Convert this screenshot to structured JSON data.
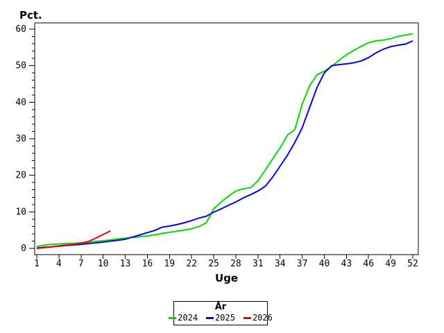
{
  "window": {
    "background": "#ffffff"
  },
  "chart_data": {
    "type": "line",
    "title": "",
    "ylabel": "Pct.",
    "xlabel": "Uge",
    "legend_title": "År",
    "legend_position": "bottom-center",
    "grid": false,
    "xlim": [
      1,
      52
    ],
    "ylim": [
      0,
      60
    ],
    "x_ticks": [
      1,
      4,
      7,
      10,
      13,
      16,
      19,
      22,
      25,
      28,
      31,
      34,
      37,
      40,
      43,
      46,
      49,
      52
    ],
    "y_ticks": [
      0,
      10,
      20,
      30,
      40,
      50,
      60
    ],
    "y_minor_tick_step": 2,
    "axis_color": "#000000",
    "series": [
      {
        "name": "2024",
        "color": "#00dd00",
        "x": [
          1,
          2,
          3,
          4,
          5,
          6,
          7,
          8,
          9,
          10,
          11,
          12,
          13,
          14,
          15,
          16,
          17,
          18,
          19,
          20,
          21,
          22,
          23,
          24,
          25,
          26,
          27,
          28,
          29,
          30,
          31,
          32,
          33,
          34,
          35,
          36,
          37,
          38,
          39,
          40,
          41,
          42,
          43,
          44,
          45,
          46,
          47,
          48,
          49,
          50,
          51,
          52
        ],
        "values": [
          0.5,
          0.9,
          1.1,
          1.2,
          1.3,
          1.4,
          1.5,
          1.7,
          1.9,
          2.1,
          2.3,
          2.6,
          2.8,
          3.0,
          3.2,
          3.4,
          3.7,
          4.1,
          4.4,
          4.7,
          5.0,
          5.4,
          6.0,
          7.0,
          10.8,
          12.7,
          14.3,
          15.7,
          16.3,
          16.6,
          18.5,
          21.5,
          24.5,
          27.5,
          31.0,
          32.5,
          39.5,
          44.5,
          47.5,
          48.5,
          49.8,
          51.5,
          53.0,
          54.2,
          55.3,
          56.3,
          56.8,
          57.0,
          57.4,
          58.0,
          58.4,
          58.7
        ]
      },
      {
        "name": "2025",
        "color": "#0000ee",
        "x": [
          1,
          2,
          3,
          4,
          5,
          6,
          7,
          8,
          9,
          10,
          11,
          12,
          13,
          14,
          15,
          16,
          17,
          18,
          19,
          20,
          21,
          22,
          23,
          24,
          25,
          26,
          27,
          28,
          29,
          30,
          31,
          32,
          33,
          34,
          35,
          36,
          37,
          38,
          39,
          40,
          41,
          42,
          43,
          44,
          45,
          46,
          47,
          48,
          49,
          50,
          51,
          52
        ],
        "values": [
          0.1,
          0.3,
          0.4,
          0.6,
          0.8,
          0.9,
          1.1,
          1.3,
          1.5,
          1.7,
          2.0,
          2.2,
          2.5,
          3.1,
          3.7,
          4.3,
          4.9,
          5.8,
          6.1,
          6.5,
          7.0,
          7.6,
          8.3,
          8.8,
          9.9,
          10.8,
          11.8,
          12.7,
          13.8,
          14.7,
          15.7,
          17.0,
          19.5,
          22.5,
          25.5,
          29.0,
          33.0,
          38.5,
          44.0,
          48.0,
          50.0,
          50.3,
          50.5,
          50.8,
          51.3,
          52.2,
          53.5,
          54.5,
          55.2,
          55.6,
          55.9,
          56.8
        ]
      },
      {
        "name": "2026",
        "color": "#ee0000",
        "x": [
          1,
          2,
          3,
          4,
          5,
          6,
          7,
          8,
          9,
          10,
          11
        ],
        "values": [
          0.0,
          0.2,
          0.4,
          0.7,
          0.9,
          1.1,
          1.4,
          1.9,
          2.8,
          3.8,
          4.8
        ]
      }
    ]
  }
}
